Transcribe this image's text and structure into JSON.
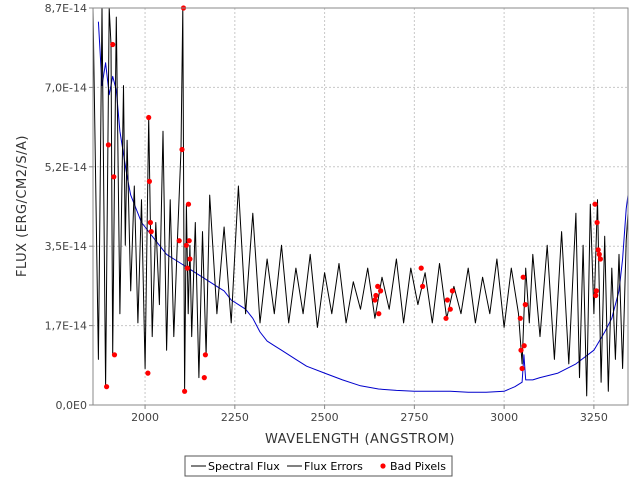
{
  "chart_data": {
    "type": "line",
    "xlabel": "WAVELENGTH (ANGSTROM)",
    "ylabel": "FLUX (ERG/CM2/S/A)",
    "xlim": [
      1855,
      3345
    ],
    "ylim": [
      0,
      8.7e-14
    ],
    "x_ticks": [
      {
        "value": 2000,
        "label": "2000"
      },
      {
        "value": 2250,
        "label": "2250"
      },
      {
        "value": 2500,
        "label": "2500"
      },
      {
        "value": 2750,
        "label": "2750"
      },
      {
        "value": 3000,
        "label": "3000"
      },
      {
        "value": 3250,
        "label": "3250"
      }
    ],
    "y_ticks": [
      {
        "value": 0,
        "label": "0,0E0"
      },
      {
        "value": 1.74e-14,
        "label": "1,7E-14"
      },
      {
        "value": 3.48e-14,
        "label": "3,5E-14"
      },
      {
        "value": 5.22e-14,
        "label": "5,2E-14"
      },
      {
        "value": 6.96e-14,
        "label": "7,0E-14"
      },
      {
        "value": 8.7e-14,
        "label": "8,7E-14"
      }
    ],
    "grid": true,
    "legend_position": "bottom",
    "series": [
      {
        "name": "Spectral Flux",
        "color": "#000000",
        "x": [
          1855,
          1870,
          1880,
          1890,
          1900,
          1905,
          1910,
          1915,
          1920,
          1930,
          1940,
          1945,
          1950,
          1960,
          1970,
          1980,
          1990,
          2000,
          2010,
          2020,
          2030,
          2040,
          2050,
          2060,
          2070,
          2080,
          2090,
          2100,
          2105,
          2110,
          2115,
          2120,
          2125,
          2130,
          2140,
          2150,
          2160,
          2170,
          2180,
          2200,
          2220,
          2240,
          2260,
          2280,
          2300,
          2320,
          2340,
          2360,
          2380,
          2400,
          2420,
          2440,
          2460,
          2480,
          2500,
          2520,
          2540,
          2560,
          2580,
          2600,
          2620,
          2640,
          2660,
          2680,
          2700,
          2720,
          2740,
          2760,
          2780,
          2800,
          2820,
          2840,
          2860,
          2880,
          2900,
          2920,
          2940,
          2960,
          2980,
          3000,
          3020,
          3040,
          3050,
          3060,
          3070,
          3080,
          3100,
          3120,
          3140,
          3160,
          3180,
          3200,
          3210,
          3220,
          3230,
          3240,
          3250,
          3260,
          3270,
          3280,
          3290,
          3300,
          3310,
          3320,
          3330,
          3340,
          3345
        ],
        "y": [
          8.7e-14,
          1e-14,
          8.7e-14,
          4e-15,
          8.7e-14,
          7.9e-14,
          1.1e-14,
          5e-14,
          8.5e-14,
          2e-14,
          7e-14,
          3.5e-14,
          5.8e-14,
          2.5e-14,
          4.8e-14,
          1.8e-14,
          4.5e-14,
          8e-15,
          6.3e-14,
          1.5e-14,
          4e-14,
          2.2e-14,
          6e-14,
          1.2e-14,
          4.5e-14,
          1.5e-14,
          3.6e-14,
          5.6e-14,
          8.7e-14,
          3e-15,
          4.4e-14,
          2e-14,
          3.5e-14,
          1.5e-14,
          4e-14,
          6e-15,
          3.8e-14,
          1.1e-14,
          4.6e-14,
          2e-14,
          3.9e-14,
          1.8e-14,
          4.8e-14,
          2e-14,
          4.2e-14,
          1.8e-14,
          3.2e-14,
          2e-14,
          3.5e-14,
          1.8e-14,
          3e-14,
          2e-14,
          3.3e-14,
          1.7e-14,
          2.9e-14,
          2e-14,
          3.1e-14,
          1.8e-14,
          2.7e-14,
          2.1e-14,
          3e-14,
          1.9e-14,
          2.8e-14,
          2.1e-14,
          3.2e-14,
          1.8e-14,
          3e-14,
          2.2e-14,
          2.9e-14,
          1.8e-14,
          3.1e-14,
          1.9e-14,
          2.6e-14,
          2e-14,
          3e-14,
          1.8e-14,
          2.8e-14,
          2e-14,
          3.2e-14,
          1.7e-14,
          3e-14,
          2e-14,
          9e-15,
          3e-14,
          1.8e-14,
          3.3e-14,
          1.5e-14,
          3.5e-14,
          1e-14,
          3.8e-14,
          9e-15,
          4.2e-14,
          6e-15,
          3.5e-14,
          2e-15,
          4.4e-14,
          2e-14,
          4.5e-14,
          5e-15,
          3.7e-14,
          3e-15,
          3e-14,
          1e-14,
          3.3e-14,
          8e-15,
          3.6e-14,
          4.2e-14
        ]
      },
      {
        "name": "Flux Errors",
        "color": "#0000cc",
        "x": [
          1870,
          1880,
          1890,
          1900,
          1910,
          1920,
          1930,
          1940,
          1950,
          1960,
          1970,
          1980,
          1990,
          2000,
          2020,
          2040,
          2060,
          2080,
          2100,
          2120,
          2140,
          2160,
          2180,
          2200,
          2220,
          2240,
          2260,
          2280,
          2300,
          2320,
          2340,
          2360,
          2380,
          2400,
          2420,
          2450,
          2500,
          2550,
          2600,
          2650,
          2700,
          2750,
          2800,
          2850,
          2900,
          2950,
          3000,
          3030,
          3050,
          3055,
          3060,
          3080,
          3100,
          3150,
          3200,
          3250,
          3280,
          3300,
          3320,
          3330,
          3340,
          3345
        ],
        "y": [
          8.4e-14,
          7e-14,
          7.5e-14,
          6.8e-14,
          7.2e-14,
          6.9e-14,
          6e-14,
          5.5e-14,
          5e-14,
          4.6e-14,
          4.4e-14,
          4.2e-14,
          4e-14,
          3.9e-14,
          3.7e-14,
          3.5e-14,
          3.3e-14,
          3.2e-14,
          3.1e-14,
          3e-14,
          2.9e-14,
          2.8e-14,
          2.7e-14,
          2.6e-14,
          2.5e-14,
          2.3e-14,
          2.2e-14,
          2.1e-14,
          1.9e-14,
          1.6e-14,
          1.4e-14,
          1.3e-14,
          1.2e-14,
          1.1e-14,
          1e-14,
          8.5e-15,
          7e-15,
          5.5e-15,
          4.2e-15,
          3.5e-15,
          3.2e-15,
          3e-15,
          3e-15,
          3e-15,
          2.8e-15,
          2.8e-15,
          3e-15,
          4e-15,
          5e-15,
          1.1e-14,
          5.5e-15,
          5.5e-15,
          6e-15,
          7e-15,
          9e-15,
          1.2e-14,
          1.6e-14,
          1.9e-14,
          2.5e-14,
          3.2e-14,
          4.3e-14,
          4.6e-14
        ]
      },
      {
        "name": "Bad Pixels",
        "color": "#ff0000",
        "type": "scatter",
        "x": [
          1893,
          1898,
          1910,
          1913,
          1915,
          2008,
          2010,
          2012,
          2015,
          2017,
          2095,
          2103,
          2107,
          2110,
          2115,
          2118,
          2121,
          2123,
          2125,
          2165,
          2168,
          2640,
          2643,
          2648,
          2651,
          2656,
          2769,
          2773,
          2838,
          2842,
          2850,
          2856,
          3045,
          3047,
          3050,
          3053,
          3056,
          3059,
          3253,
          3255,
          3257,
          3259,
          3262,
          3265,
          3268
        ],
        "y": [
          4e-15,
          5.7e-14,
          7.9e-14,
          5e-14,
          1.1e-14,
          7e-15,
          6.3e-14,
          4.9e-14,
          4e-14,
          3.8e-14,
          3.6e-14,
          5.6e-14,
          8.7e-14,
          3e-15,
          3.5e-14,
          3e-14,
          4.4e-14,
          3.6e-14,
          3.2e-14,
          6e-15,
          1.1e-14,
          2.3e-14,
          2.4e-14,
          2.6e-14,
          2e-14,
          2.5e-14,
          3e-14,
          2.6e-14,
          1.9e-14,
          2.3e-14,
          2.1e-14,
          2.5e-14,
          1.9e-14,
          1.2e-14,
          8e-15,
          2.8e-14,
          1.3e-14,
          2.2e-14,
          4.4e-14,
          2.4e-14,
          2.5e-14,
          4e-14,
          3.4e-14,
          3.3e-14,
          3.2e-14
        ]
      }
    ]
  }
}
